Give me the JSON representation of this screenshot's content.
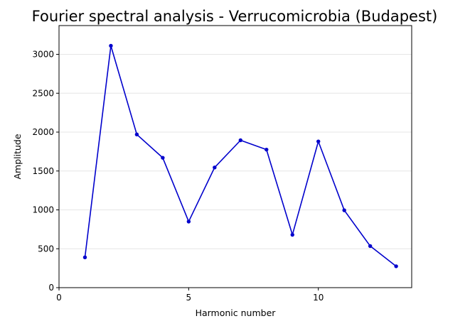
{
  "chart_data": {
    "type": "line",
    "title": "Fourier spectral analysis - Verrucomicrobia (Budapest)",
    "xlabel": "Harmonic number",
    "ylabel": "Amplitude",
    "xlim": [
      0,
      13.6
    ],
    "ylim": [
      0,
      3370
    ],
    "xticks": [
      0,
      5,
      10
    ],
    "yticks": [
      0,
      500,
      1000,
      1500,
      2000,
      2500,
      3000
    ],
    "grid": "horizontal",
    "line_color": "#0000cc",
    "series": [
      {
        "x": [
          1,
          2,
          3,
          4,
          5,
          6,
          7,
          8,
          9,
          10,
          11,
          12,
          13
        ],
        "y": [
          390,
          3110,
          1970,
          1670,
          850,
          1545,
          1895,
          1775,
          680,
          1880,
          995,
          535,
          275
        ]
      }
    ]
  }
}
